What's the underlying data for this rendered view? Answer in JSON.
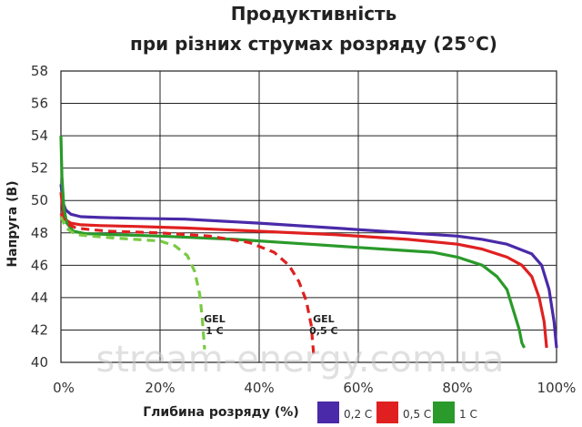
{
  "chart_data": {
    "type": "line",
    "title": [
      "Продуктивність",
      "при різних струмах розряду (25°C)"
    ],
    "xlabel": "Глибина розряду (%)",
    "ylabel": "Напруга (В)",
    "xlim": [
      0,
      100
    ],
    "ylim": [
      40,
      58
    ],
    "x_ticks": [
      "0%",
      "20%",
      "40%",
      "60%",
      "80%",
      "100%"
    ],
    "y_ticks": [
      "40",
      "42",
      "44",
      "46",
      "48",
      "50",
      "52",
      "54",
      "56",
      "58"
    ],
    "grid": true,
    "legend_position": "bottom-right",
    "legend": [
      {
        "label": "0,2 C",
        "color": "#4a2aa8"
      },
      {
        "label": "0,5 C",
        "color": "#e02020"
      },
      {
        "label": "1 C",
        "color": "#2a9a2a"
      }
    ],
    "series": [
      {
        "name": "0,2 C",
        "color": "#4a2aa8",
        "style": "solid",
        "x": [
          0,
          0.5,
          1,
          2,
          4,
          8,
          15,
          25,
          40,
          55,
          70,
          80,
          85,
          90,
          95,
          97,
          98.5,
          99.5,
          100
        ],
        "y": [
          51,
          49.8,
          49.4,
          49.15,
          49.0,
          48.95,
          48.9,
          48.85,
          48.6,
          48.3,
          48.0,
          47.8,
          47.6,
          47.3,
          46.7,
          46.0,
          44.5,
          42.5,
          40.9
        ]
      },
      {
        "name": "0,5 C",
        "color": "#e02020",
        "style": "solid",
        "x": [
          0,
          0.5,
          1,
          2,
          4,
          8,
          15,
          25,
          40,
          55,
          70,
          80,
          85,
          90,
          93,
          95,
          96.5,
          97.5,
          98
        ],
        "y": [
          50.5,
          49.2,
          48.8,
          48.6,
          48.5,
          48.45,
          48.4,
          48.3,
          48.1,
          47.9,
          47.6,
          47.3,
          47.0,
          46.5,
          46.0,
          45.3,
          44.0,
          42.5,
          40.9
        ]
      },
      {
        "name": "1 C",
        "color": "#2a9a2a",
        "style": "solid",
        "x": [
          0,
          0.2,
          0.6,
          1.2,
          2.5,
          5,
          10,
          20,
          35,
          50,
          65,
          75,
          80,
          85,
          88,
          90,
          91.5,
          92.5,
          93,
          93.5
        ],
        "y": [
          54,
          51.5,
          49.5,
          48.6,
          48.1,
          47.95,
          47.9,
          47.8,
          47.6,
          47.3,
          47.0,
          46.8,
          46.5,
          46.0,
          45.3,
          44.5,
          43.0,
          42.0,
          41.2,
          40.9
        ]
      },
      {
        "name": "GEL 0,5 C",
        "color": "#e02020",
        "style": "dashed",
        "x": [
          0,
          1,
          3,
          6,
          10,
          20,
          30,
          38,
          43,
          46,
          48,
          49.5,
          50.5,
          51
        ],
        "y": [
          49.2,
          48.6,
          48.3,
          48.2,
          48.1,
          48.0,
          47.8,
          47.4,
          46.8,
          46.0,
          45.0,
          43.8,
          42.3,
          40.5
        ]
      },
      {
        "name": "GEL 1 C",
        "color": "#7ac943",
        "style": "dashed",
        "x": [
          0,
          1,
          3,
          6,
          10,
          15,
          20,
          23,
          25.5,
          27,
          28,
          28.5,
          29
        ],
        "y": [
          49.0,
          48.3,
          47.9,
          47.8,
          47.7,
          47.6,
          47.5,
          47.2,
          46.6,
          45.6,
          44.2,
          42.8,
          40.8
        ]
      }
    ],
    "annotations": [
      {
        "text": [
          "GEL",
          "1 C"
        ],
        "x": 31,
        "y": 41.8
      },
      {
        "text": [
          "GEL",
          "0,5 C"
        ],
        "x": 53,
        "y": 41.8
      }
    ]
  },
  "watermark": "stream-energy.com.ua"
}
